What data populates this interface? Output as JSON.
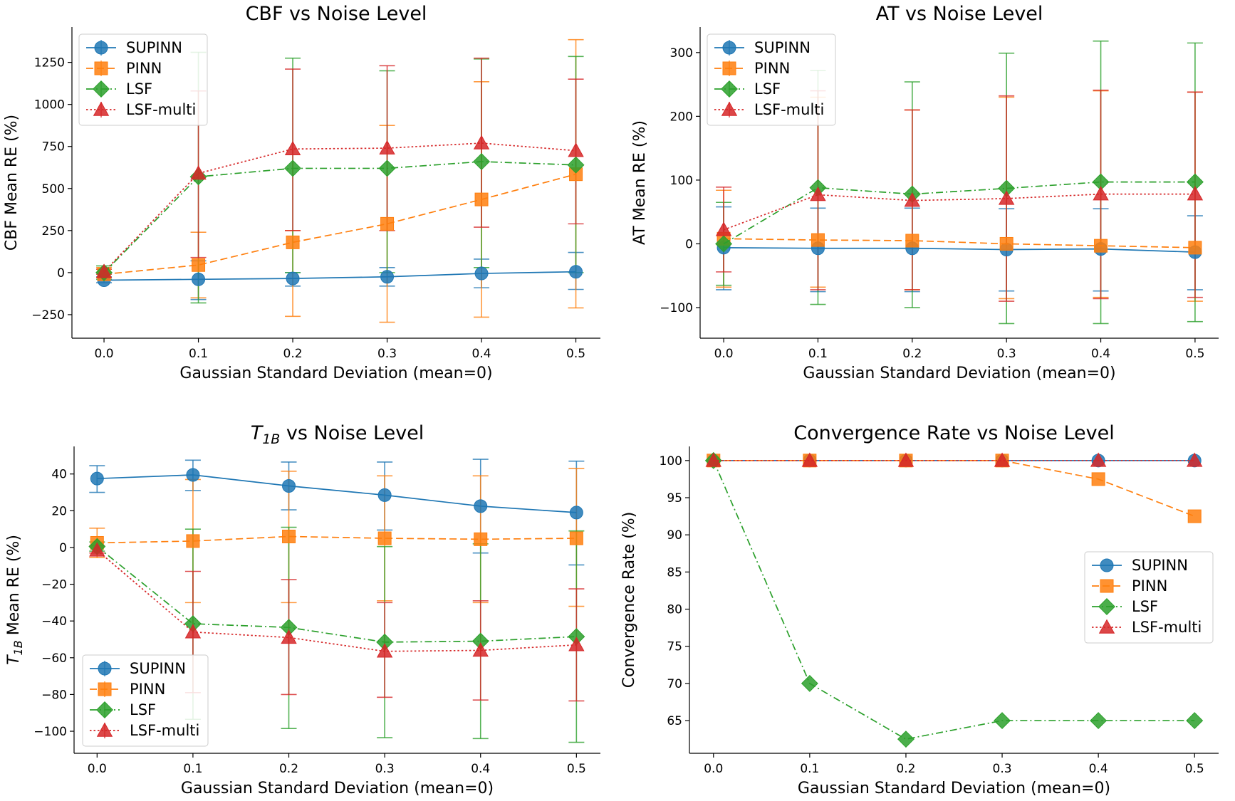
{
  "figure": {
    "colors": {
      "SUPINN": "#1f77b4",
      "PINN": "#ff7f0e",
      "LSF": "#2ca02c",
      "LSF-multi": "#d62728"
    },
    "markers": {
      "SUPINN": "circle",
      "PINN": "square",
      "LSF": "diamond",
      "LSF-multi": "triangle"
    },
    "line_styles": {
      "SUPINN": "solid",
      "PINN": "dashed",
      "LSF": "dash-dot",
      "LSF-multi": "dotted"
    }
  },
  "chart_data": [
    {
      "type": "line",
      "title": "CBF vs Noise Level",
      "xlabel": "Gaussian Standard Deviation (mean=0)",
      "ylabel": "CBF Mean RE (%)",
      "x": [
        0.0,
        0.1,
        0.2,
        0.3,
        0.4,
        0.5
      ],
      "xticks": [
        "0.0",
        "0.1",
        "0.2",
        "0.3",
        "0.4",
        "0.5"
      ],
      "ylim": [
        -390,
        1460
      ],
      "yticks": [
        -250,
        0,
        250,
        500,
        750,
        1000,
        1250
      ],
      "yticklabels": [
        "−250",
        "0",
        "250",
        "500",
        "750",
        "1000",
        "1250"
      ],
      "legend": "upper left",
      "series": [
        {
          "name": "SUPINN",
          "values": [
            -45,
            -40,
            -35,
            -25,
            -5,
            5
          ],
          "err_low": [
            -60,
            -160,
            -80,
            -80,
            -90,
            -100
          ],
          "err_high": [
            -25,
            70,
            0,
            30,
            80,
            120
          ]
        },
        {
          "name": "PINN",
          "values": [
            -10,
            45,
            180,
            290,
            435,
            585
          ],
          "err_low": [
            -30,
            -150,
            -260,
            -295,
            -265,
            -210
          ],
          "err_high": [
            30,
            240,
            250,
            875,
            1135,
            1385
          ]
        },
        {
          "name": "LSF",
          "values": [
            0,
            570,
            620,
            620,
            660,
            640
          ],
          "err_low": [
            -40,
            -180,
            0,
            0,
            30,
            0
          ],
          "err_high": [
            40,
            1310,
            1275,
            1200,
            1270,
            1285
          ]
        },
        {
          "name": "LSF-multi",
          "values": [
            5,
            590,
            735,
            740,
            770,
            725
          ],
          "err_low": [
            -10,
            90,
            250,
            250,
            270,
            290
          ],
          "err_high": [
            20,
            1080,
            1210,
            1230,
            1275,
            1150
          ]
        }
      ]
    },
    {
      "type": "line",
      "title": "AT vs Noise Level",
      "xlabel": "Gaussian Standard Deviation (mean=0)",
      "ylabel": "AT Mean RE (%)",
      "x": [
        0.0,
        0.1,
        0.2,
        0.3,
        0.4,
        0.5
      ],
      "xticks": [
        "0.0",
        "0.1",
        "0.2",
        "0.3",
        "0.4",
        "0.5"
      ],
      "ylim": [
        -148,
        340
      ],
      "yticks": [
        -100,
        0,
        100,
        200,
        300
      ],
      "yticklabels": [
        "−100",
        "0",
        "100",
        "200",
        "300"
      ],
      "legend": "upper left",
      "series": [
        {
          "name": "SUPINN",
          "values": [
            -6,
            -7,
            -7,
            -9,
            -8,
            -13
          ],
          "err_low": [
            -72,
            -75,
            -75,
            -74,
            -74,
            -72
          ],
          "err_high": [
            58,
            56,
            56,
            55,
            55,
            44
          ]
        },
        {
          "name": "PINN",
          "values": [
            8,
            6,
            5,
            0,
            -3,
            -6
          ],
          "err_low": [
            -68,
            -68,
            -72,
            -86,
            -84,
            -90
          ],
          "err_high": [
            84,
            230,
            210,
            230,
            240,
            238
          ]
        },
        {
          "name": "LSF",
          "values": [
            0,
            88,
            78,
            87,
            97,
            97
          ],
          "err_low": [
            -65,
            -95,
            -100,
            -125,
            -125,
            -122
          ],
          "err_high": [
            65,
            272,
            254,
            299,
            318,
            315
          ]
        },
        {
          "name": "LSF-multi",
          "values": [
            22,
            77,
            68,
            71,
            78,
            78
          ],
          "err_low": [
            -44,
            -72,
            -72,
            -90,
            -86,
            -84
          ],
          "err_high": [
            89,
            240,
            210,
            232,
            241,
            238
          ]
        }
      ]
    },
    {
      "type": "line",
      "title": "T1B vs Noise Level",
      "title_main": "T",
      "title_sub": "1B",
      "title_rest": " vs Noise Level",
      "xlabel": "Gaussian Standard Deviation (mean=0)",
      "ylabel": "Mean RE (%)",
      "ylabel_main": "T",
      "ylabel_sub": "1B",
      "ylabel_rest": " Mean RE (%)",
      "x": [
        0.0,
        0.1,
        0.2,
        0.3,
        0.4,
        0.5
      ],
      "xticks": [
        "0.0",
        "0.1",
        "0.2",
        "0.3",
        "0.4",
        "0.5"
      ],
      "ylim": [
        -112,
        55
      ],
      "yticks": [
        -100,
        -80,
        -60,
        -40,
        -20,
        0,
        20,
        40
      ],
      "yticklabels": [
        "−100",
        "−80",
        "−60",
        "−40",
        "−20",
        "0",
        "20",
        "40"
      ],
      "legend": "lower left",
      "series": [
        {
          "name": "SUPINN",
          "values": [
            37.5,
            39.5,
            33.5,
            28.5,
            22.5,
            19.0
          ],
          "err_low": [
            30,
            31,
            20.5,
            9.5,
            -3,
            -9.5
          ],
          "err_high": [
            44.5,
            47.5,
            46.5,
            46.5,
            48,
            47
          ]
        },
        {
          "name": "PINN",
          "values": [
            2.5,
            3.5,
            6.0,
            5.0,
            4.5,
            5.0
          ],
          "err_low": [
            -5.5,
            -30,
            -30,
            -29,
            -30,
            -32
          ],
          "err_high": [
            10.5,
            37,
            41.5,
            39,
            39,
            43
          ]
        },
        {
          "name": "LSF",
          "values": [
            0.5,
            -41.5,
            -43.5,
            -51.5,
            -51.0,
            -48.5
          ],
          "err_low": [
            -2,
            -93.5,
            -98.5,
            -103.5,
            -104,
            -106
          ],
          "err_high": [
            3,
            10,
            11,
            0.5,
            2,
            9
          ]
        },
        {
          "name": "LSF-multi",
          "values": [
            -1.5,
            -46.0,
            -49.0,
            -56.5,
            -56.0,
            -53.0
          ],
          "err_low": [
            -3,
            -79,
            -80,
            -81.5,
            -83,
            -83.5
          ],
          "err_high": [
            1,
            -13,
            -17.5,
            -30,
            -29,
            -22.5
          ]
        }
      ]
    },
    {
      "type": "line",
      "title": "Convergence Rate vs Noise Level",
      "xlabel": "Gaussian Standard Deviation (mean=0)",
      "ylabel": "Convergence Rate (%)",
      "x": [
        0.0,
        0.1,
        0.2,
        0.3,
        0.4,
        0.5
      ],
      "xticks": [
        "0.0",
        "0.1",
        "0.2",
        "0.3",
        "0.4",
        "0.5"
      ],
      "ylim": [
        60.6,
        101.9
      ],
      "yticks": [
        65,
        70,
        75,
        80,
        85,
        90,
        95,
        100
      ],
      "yticklabels": [
        "65",
        "70",
        "75",
        "80",
        "85",
        "90",
        "95",
        "100"
      ],
      "legend": "center right",
      "series": [
        {
          "name": "SUPINN",
          "values": [
            100,
            100,
            100,
            100,
            100,
            100
          ]
        },
        {
          "name": "PINN",
          "values": [
            100,
            100,
            100,
            100,
            97.5,
            92.5
          ]
        },
        {
          "name": "LSF",
          "values": [
            100,
            70,
            62.5,
            65,
            65,
            65
          ]
        },
        {
          "name": "LSF-multi",
          "values": [
            100,
            100,
            100,
            100,
            100,
            100
          ]
        }
      ]
    }
  ]
}
